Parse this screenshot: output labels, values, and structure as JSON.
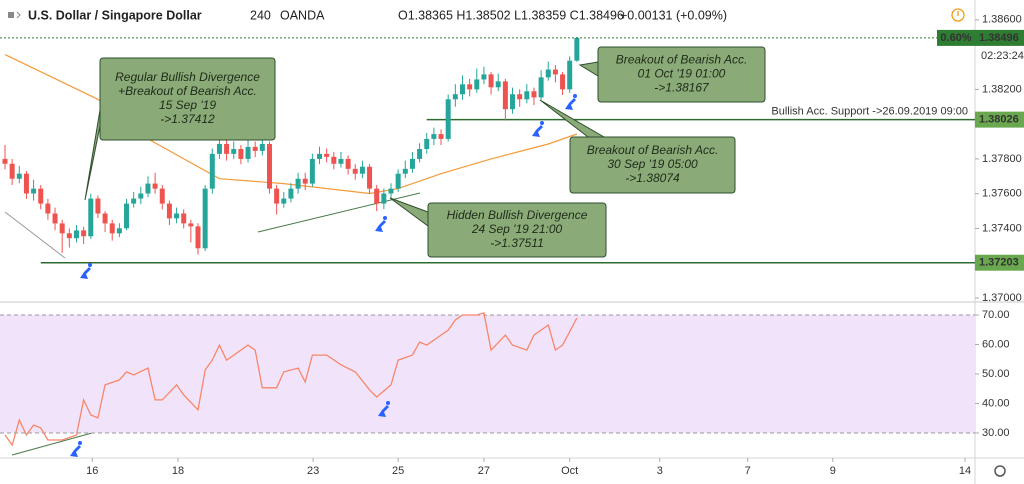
{
  "header": {
    "symbol": "U.S. Dollar / Singapore Dollar",
    "interval": "240",
    "exchange": "OANDA",
    "ohlc": "O1.38365 H1.38502 L1.38359 C1.38496",
    "change": "+0.00131 (+0.09%)"
  },
  "chart_data": [
    {
      "type": "candlestick",
      "up_color": "#26a69a",
      "down_color": "#ef5350",
      "x": [
        0,
        1,
        2,
        3,
        4,
        5,
        6,
        7,
        8,
        9,
        10,
        11,
        12,
        13,
        14,
        15,
        16,
        17,
        18,
        19,
        20,
        21,
        22,
        23,
        24,
        25,
        26,
        27,
        28,
        29,
        30,
        31,
        32,
        33,
        34,
        35,
        36,
        37,
        38,
        39,
        40,
        41,
        42,
        43,
        44,
        45,
        46,
        47,
        48,
        49,
        50,
        51,
        52,
        53,
        54,
        55,
        56,
        57,
        58,
        59,
        60,
        61,
        62,
        63,
        64,
        65,
        66,
        67,
        68,
        69,
        70,
        71,
        72,
        73,
        74,
        75,
        76,
        77,
        78,
        79,
        80
      ],
      "open": [
        1.378,
        1.37772,
        1.37686,
        1.37715,
        1.37601,
        1.37629,
        1.37543,
        1.37486,
        1.37429,
        1.37372,
        1.37344,
        1.37389,
        1.37355,
        1.37572,
        1.37486,
        1.37429,
        1.37372,
        1.37401,
        1.37543,
        1.37572,
        1.37601,
        1.37658,
        1.37629,
        1.37543,
        1.37458,
        1.37486,
        1.37429,
        1.37412,
        1.37286,
        1.37629,
        1.37829,
        1.37886,
        1.37829,
        1.37857,
        1.378,
        1.37869,
        1.37846,
        1.37886,
        1.37629,
        1.37543,
        1.37572,
        1.37629,
        1.37686,
        1.37658,
        1.378,
        1.37829,
        1.37812,
        1.37772,
        1.378,
        1.37743,
        1.37715,
        1.37755,
        1.37629,
        1.37543,
        1.37601,
        1.37629,
        1.37715,
        1.37743,
        1.378,
        1.37857,
        1.37915,
        1.37943,
        1.37915,
        1.38143,
        1.38172,
        1.38229,
        1.382,
        1.38257,
        1.38286,
        1.38212,
        1.38246,
        1.38086,
        1.38172,
        1.38143,
        1.38189,
        1.38154,
        1.38269,
        1.38314,
        1.38286,
        1.382,
        1.38365
      ],
      "high": [
        1.3788,
        1.378,
        1.3776,
        1.3773,
        1.3768,
        1.3765,
        1.3757,
        1.3752,
        1.3745,
        1.374,
        1.3742,
        1.3741,
        1.376,
        1.3759,
        1.375,
        1.3745,
        1.3743,
        1.3757,
        1.3761,
        1.3764,
        1.377,
        1.3772,
        1.3765,
        1.3756,
        1.3752,
        1.3751,
        1.3745,
        1.3743,
        1.3765,
        1.3786,
        1.3796,
        1.3791,
        1.379,
        1.3788,
        1.3795,
        1.379,
        1.3792,
        1.379,
        1.3765,
        1.3761,
        1.3766,
        1.3772,
        1.3772,
        1.3783,
        1.3787,
        1.3786,
        1.3784,
        1.3784,
        1.3782,
        1.3777,
        1.3779,
        1.3777,
        1.3765,
        1.3763,
        1.3766,
        1.3774,
        1.3779,
        1.3784,
        1.3789,
        1.3795,
        1.3798,
        1.3797,
        1.3817,
        1.3823,
        1.3828,
        1.3826,
        1.3832,
        1.3833,
        1.383,
        1.3829,
        1.3826,
        1.3821,
        1.382,
        1.3823,
        1.3821,
        1.3831,
        1.3836,
        1.3834,
        1.383,
        1.3839,
        1.38502
      ],
      "low": [
        1.3774,
        1.3765,
        1.3766,
        1.3757,
        1.3756,
        1.3751,
        1.3745,
        1.3739,
        1.3726,
        1.3729,
        1.3732,
        1.3731,
        1.3734,
        1.3746,
        1.3738,
        1.3733,
        1.3735,
        1.3739,
        1.3752,
        1.3754,
        1.3758,
        1.376,
        1.3751,
        1.3742,
        1.3743,
        1.374,
        1.3732,
        1.3725,
        1.3727,
        1.376,
        1.378,
        1.3779,
        1.378,
        1.3777,
        1.3778,
        1.3781,
        1.3782,
        1.376,
        1.3748,
        1.3752,
        1.3755,
        1.376,
        1.3762,
        1.3764,
        1.3777,
        1.3778,
        1.3774,
        1.3775,
        1.3771,
        1.3768,
        1.3769,
        1.376,
        1.375,
        1.37511,
        1.3757,
        1.3761,
        1.3769,
        1.3772,
        1.3778,
        1.3783,
        1.3788,
        1.3788,
        1.379,
        1.381,
        1.3814,
        1.3816,
        1.3818,
        1.3823,
        1.3817,
        1.3819,
        1.3802,
        1.3806,
        1.381,
        1.3812,
        1.3811,
        1.3814,
        1.3825,
        1.3824,
        1.38167,
        1.3818,
        1.38359
      ],
      "close": [
        1.37772,
        1.37686,
        1.37715,
        1.37601,
        1.37629,
        1.37543,
        1.37486,
        1.37429,
        1.37372,
        1.37344,
        1.37389,
        1.37355,
        1.37572,
        1.37486,
        1.37429,
        1.37372,
        1.37401,
        1.37543,
        1.37572,
        1.37601,
        1.37658,
        1.37629,
        1.37543,
        1.37458,
        1.37486,
        1.37429,
        1.37412,
        1.37286,
        1.37629,
        1.37829,
        1.37886,
        1.37829,
        1.37857,
        1.378,
        1.37869,
        1.37846,
        1.37886,
        1.37629,
        1.37543,
        1.37572,
        1.37629,
        1.37686,
        1.37658,
        1.378,
        1.37829,
        1.37812,
        1.37772,
        1.378,
        1.37743,
        1.37715,
        1.37755,
        1.37629,
        1.37543,
        1.37601,
        1.37629,
        1.37715,
        1.37743,
        1.378,
        1.37857,
        1.37915,
        1.37943,
        1.37915,
        1.38143,
        1.38172,
        1.38229,
        1.382,
        1.38257,
        1.38286,
        1.38212,
        1.38246,
        1.38086,
        1.38172,
        1.38143,
        1.38189,
        1.38154,
        1.38269,
        1.38314,
        1.38286,
        1.382,
        1.38365,
        1.38496
      ],
      "moving_average": {
        "color": "#f59b3a",
        "x": [
          0,
          13,
          20,
          30,
          39,
          51,
          55,
          61,
          68,
          76,
          80
        ],
        "values": [
          1.384,
          1.38143,
          1.37915,
          1.37686,
          1.37658,
          1.37601,
          1.37629,
          1.37715,
          1.378,
          1.37886,
          1.37943
        ]
      },
      "xlim": [
        -0.7,
        135.7
      ],
      "ylim": [
        1.36977,
        1.38714
      ],
      "yticks": [
        {
          "value": 1.37,
          "label": "1.37000"
        },
        {
          "value": 1.374,
          "label": "1.37400"
        },
        {
          "value": 1.376,
          "label": "1.37600"
        },
        {
          "value": 1.378,
          "label": "1.37800"
        },
        {
          "value": 1.382,
          "label": "1.38200"
        },
        {
          "value": 1.386,
          "label": "1.38600"
        }
      ],
      "current_price": {
        "value": 1.38496,
        "label": "1.38496",
        "change_label": "0.60%",
        "countdown": "02:23:24",
        "color": "#2e7d32"
      },
      "levels": [
        {
          "value": 1.38026,
          "label": "1.38026",
          "text": "Bullish Acc. Support ->26.09.2019 09:00",
          "x_start": 59,
          "color": "#2e6b2e"
        },
        {
          "value": 1.37203,
          "label": "1.37203",
          "x_start": 5,
          "color": "#2e6b2e"
        }
      ],
      "grid": false
    },
    {
      "type": "line",
      "color": "#f7866a",
      "x": [
        0,
        1,
        2,
        3,
        4,
        5,
        6,
        8,
        10,
        11,
        12,
        13,
        14,
        16,
        17,
        18,
        20,
        21,
        22,
        24,
        25,
        27,
        28,
        29,
        30,
        31,
        33,
        34,
        35,
        36,
        38,
        39,
        41,
        42,
        43,
        45,
        47,
        49,
        51,
        52,
        54,
        55,
        57,
        58,
        59,
        61,
        62,
        63,
        64,
        66,
        67,
        68,
        70,
        71,
        73,
        74,
        76,
        77,
        78,
        80
      ],
      "values": [
        29.3,
        25.9,
        34.4,
        29.3,
        32.7,
        31.7,
        27.6,
        27.6,
        29.3,
        41.2,
        36.1,
        35.1,
        46.3,
        48.0,
        50.7,
        49.7,
        52.0,
        41.2,
        41.2,
        46.3,
        42.9,
        37.8,
        51.4,
        54.7,
        59.8,
        54.7,
        58.1,
        59.8,
        58.1,
        45.3,
        45.3,
        50.7,
        52.0,
        47.3,
        56.4,
        56.4,
        53.1,
        50.7,
        44.6,
        42.2,
        46.3,
        54.7,
        56.4,
        60.8,
        59.8,
        63.2,
        64.9,
        68.3,
        70.0,
        70.0,
        70.7,
        58.1,
        63.2,
        59.8,
        58.1,
        63.2,
        66.6,
        58.1,
        59.8,
        69.0
      ],
      "band": [
        30,
        70
      ],
      "band_color": "#f1e4fa",
      "xlim": [
        -0.7,
        135.7
      ],
      "ylim": [
        21.5,
        73.4
      ],
      "yticks": [
        {
          "value": 30,
          "label": "30.00"
        },
        {
          "value": 40,
          "label": "40.00"
        },
        {
          "value": 50,
          "label": "50.00"
        },
        {
          "value": 60,
          "label": "60.00"
        },
        {
          "value": 70,
          "label": "70.00"
        }
      ],
      "xticks": [
        {
          "value": 12.2,
          "label": "16"
        },
        {
          "value": 24.2,
          "label": "18"
        },
        {
          "value": 43.1,
          "label": "23"
        },
        {
          "value": 55,
          "label": "25"
        },
        {
          "value": 67,
          "label": "27"
        },
        {
          "value": 79,
          "label": "Oct"
        },
        {
          "value": 91.6,
          "label": "3"
        },
        {
          "value": 103.9,
          "label": "7"
        },
        {
          "value": 115.8,
          "label": "9"
        },
        {
          "value": 134.3,
          "label": "14"
        }
      ]
    }
  ],
  "annotations": [
    {
      "lines": [
        "Regular Bullish Divergence",
        "+Breakout of Bearish Acc.",
        "15 Sep '19",
        "->1.37412"
      ]
    },
    {
      "lines": [
        "Breakout of Bearish Acc.",
        "01 Oct '19 01:00",
        "->1.38167"
      ]
    },
    {
      "lines": [
        "Breakout of Bearish Acc.",
        "30 Sep '19 05:00",
        "->1.38074"
      ]
    },
    {
      "lines": [
        "Hidden Bullish Divergence",
        "24 Sep '19 21:00",
        "->1.37511"
      ]
    }
  ]
}
